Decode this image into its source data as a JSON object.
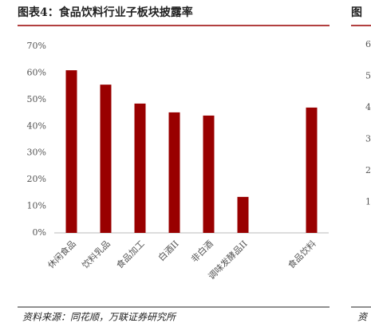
{
  "chart_data": {
    "type": "bar",
    "title": "图表4：食品饮料行业子板块披露率",
    "categories": [
      "休闲食品",
      "饮料乳品",
      "食品加工",
      "白酒II",
      "非白酒",
      "调味发酵品II",
      null,
      "食品饮料"
    ],
    "values": [
      61,
      55.6,
      48.5,
      45.2,
      44,
      13.5,
      null,
      47
    ],
    "color": "#990000",
    "ylim": [
      0,
      70
    ],
    "yticks": [
      {
        "value": 0,
        "label": "0%"
      },
      {
        "value": 10,
        "label": "10%"
      },
      {
        "value": 20,
        "label": "20%"
      },
      {
        "value": 30,
        "label": "30%"
      },
      {
        "value": 40,
        "label": "40%"
      },
      {
        "value": 50,
        "label": "50%"
      },
      {
        "value": 60,
        "label": "60%"
      },
      {
        "value": 70,
        "label": "70%"
      }
    ],
    "grid": false,
    "source": "资料来源：同花顺，万联证券研究所"
  },
  "right_fragment": {
    "title": "图",
    "axis_labels": [
      6,
      5,
      4,
      3,
      2,
      1
    ],
    "source": "资"
  }
}
